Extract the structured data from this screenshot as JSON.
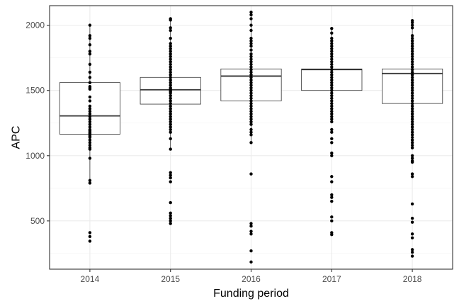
{
  "chart_data": {
    "type": "boxplot",
    "xlabel": "Funding period",
    "ylabel": "APC",
    "categories": [
      "2014",
      "2015",
      "2016",
      "2017",
      "2018"
    ],
    "yticks": [
      500,
      1000,
      1500,
      2000
    ],
    "ylim": [
      130,
      2150
    ],
    "grid": true,
    "legend": "none",
    "boxes": [
      {
        "category": "2014",
        "whisker_low": 790,
        "q1": 1165,
        "median": 1305,
        "q3": 1560,
        "whisker_high": 2000
      },
      {
        "category": "2015",
        "whisker_low": 1050,
        "q1": 1395,
        "median": 1505,
        "q3": 1600,
        "whisker_high": 2050
      },
      {
        "category": "2016",
        "whisker_low": 1095,
        "q1": 1420,
        "median": 1610,
        "q3": 1665,
        "whisker_high": 2100
      },
      {
        "category": "2017",
        "whisker_low": 1330,
        "q1": 1500,
        "median": 1660,
        "q3": 1665,
        "whisker_high": 1975
      },
      {
        "category": "2018",
        "whisker_low": 1200,
        "q1": 1400,
        "median": 1630,
        "q3": 1665,
        "whisker_high": 2035
      }
    ],
    "points": [
      {
        "category": "2014",
        "values": [
          2000,
          1920,
          1900,
          1850,
          1800,
          1780,
          1700,
          1640,
          1600,
          1560,
          1530,
          1520,
          1510,
          1450,
          1420,
          1380,
          1360,
          1340,
          1320,
          1300,
          1280,
          1260,
          1240,
          1220,
          1200,
          1190,
          1180,
          1170,
          1160,
          1150,
          1140,
          1120,
          1100,
          1080,
          1060,
          1050,
          980,
          810,
          790,
          410,
          380,
          345
        ]
      },
      {
        "category": "2015",
        "values": [
          2050,
          2040,
          1980,
          1960,
          1900,
          1860,
          1840,
          1820,
          1800,
          1780,
          1760,
          1740,
          1720,
          1700,
          1680,
          1660,
          1640,
          1620,
          1600,
          1580,
          1560,
          1540,
          1520,
          1510,
          1500,
          1490,
          1480,
          1460,
          1440,
          1420,
          1400,
          1380,
          1360,
          1340,
          1320,
          1300,
          1280,
          1260,
          1240,
          1220,
          1200,
          1180,
          1130,
          1050,
          870,
          850,
          830,
          800,
          640,
          560,
          540,
          520,
          500,
          480
        ]
      },
      {
        "category": "2016",
        "values": [
          2100,
          2080,
          2050,
          2000,
          1960,
          1900,
          1880,
          1860,
          1840,
          1810,
          1780,
          1760,
          1740,
          1720,
          1700,
          1680,
          1660,
          1640,
          1620,
          1600,
          1580,
          1560,
          1540,
          1520,
          1500,
          1480,
          1460,
          1440,
          1420,
          1400,
          1380,
          1360,
          1340,
          1320,
          1300,
          1280,
          1260,
          1240,
          1200,
          1180,
          1160,
          1100,
          860,
          480,
          460,
          420,
          400,
          270,
          185
        ]
      },
      {
        "category": "2017",
        "values": [
          1975,
          1940,
          1900,
          1880,
          1860,
          1840,
          1820,
          1800,
          1780,
          1760,
          1740,
          1720,
          1700,
          1680,
          1660,
          1640,
          1620,
          1600,
          1580,
          1560,
          1540,
          1520,
          1500,
          1480,
          1460,
          1440,
          1420,
          1400,
          1380,
          1360,
          1340,
          1320,
          1300,
          1280,
          1260,
          1200,
          1180,
          1130,
          1100,
          1020,
          1000,
          840,
          800,
          700,
          680,
          650,
          530,
          500,
          410,
          395
        ]
      },
      {
        "category": "2018",
        "values": [
          2035,
          2020,
          2000,
          1980,
          1920,
          1900,
          1880,
          1860,
          1840,
          1820,
          1800,
          1780,
          1760,
          1740,
          1720,
          1700,
          1680,
          1660,
          1640,
          1620,
          1600,
          1580,
          1560,
          1540,
          1520,
          1500,
          1480,
          1460,
          1440,
          1420,
          1400,
          1380,
          1360,
          1340,
          1320,
          1300,
          1280,
          1260,
          1240,
          1220,
          1200,
          1180,
          1160,
          1140,
          1120,
          1100,
          1080,
          1060,
          1000,
          980,
          960,
          950,
          860,
          840,
          630,
          520,
          490,
          400,
          370,
          280,
          260,
          230
        ]
      }
    ]
  }
}
